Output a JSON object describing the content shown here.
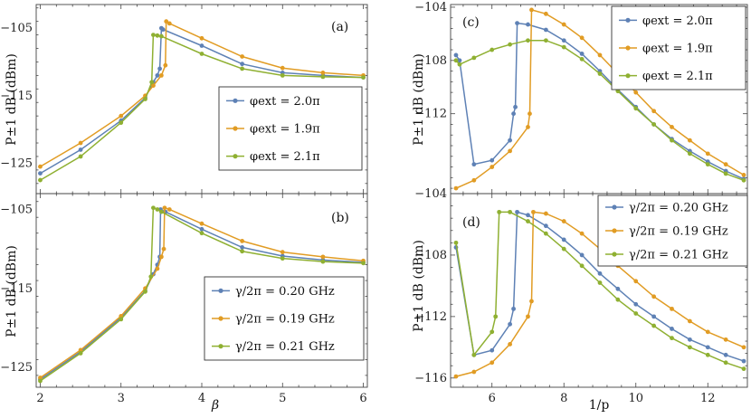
{
  "colors": {
    "blue": "#5E81B5",
    "orange": "#E19C24",
    "green": "#8FB032"
  },
  "chart_data": [
    {
      "id": "a",
      "type": "line",
      "panel_label": "(a)",
      "ylabel": "P±1 dB (dBm)",
      "xlabel": "",
      "xlim": [
        1.95,
        6.05
      ],
      "ylim": [
        -129.5,
        -101.5
      ],
      "xticks": [
        2,
        3,
        4,
        5,
        6
      ],
      "yticks": [
        -105,
        -115,
        -125
      ],
      "show_xtick_labels": false,
      "legend_position": "middle-right",
      "series": [
        {
          "name": "φext = 2.0π",
          "color": "#5E81B5",
          "points": [
            [
              2.0,
              -126.5
            ],
            [
              2.5,
              -123.0
            ],
            [
              3.0,
              -118.7
            ],
            [
              3.3,
              -115.3
            ],
            [
              3.4,
              -113.0
            ],
            [
              3.45,
              -112.0
            ],
            [
              3.48,
              -111.0
            ],
            [
              3.5,
              -105.0
            ],
            [
              3.52,
              -105.2
            ],
            [
              4.0,
              -107.6
            ],
            [
              4.5,
              -110.3
            ],
            [
              5.0,
              -111.6
            ],
            [
              5.5,
              -112.0
            ],
            [
              6.0,
              -112.3
            ]
          ]
        },
        {
          "name": "φext = 1.9π",
          "color": "#E19C24",
          "points": [
            [
              2.0,
              -125.5
            ],
            [
              2.5,
              -122.0
            ],
            [
              3.0,
              -118.0
            ],
            [
              3.3,
              -115.0
            ],
            [
              3.4,
              -113.5
            ],
            [
              3.5,
              -112.0
            ],
            [
              3.55,
              -110.5
            ],
            [
              3.56,
              -104.0
            ],
            [
              3.6,
              -104.3
            ],
            [
              4.0,
              -106.5
            ],
            [
              4.5,
              -109.2
            ],
            [
              5.0,
              -110.9
            ],
            [
              5.5,
              -111.6
            ],
            [
              6.0,
              -112.0
            ]
          ]
        },
        {
          "name": "φext = 2.1π",
          "color": "#8FB032",
          "points": [
            [
              2.0,
              -127.5
            ],
            [
              2.5,
              -124.0
            ],
            [
              3.0,
              -119.0
            ],
            [
              3.3,
              -115.5
            ],
            [
              3.38,
              -113.0
            ],
            [
              3.4,
              -106.0
            ],
            [
              3.45,
              -106.1
            ],
            [
              3.5,
              -106.2
            ],
            [
              4.0,
              -108.8
            ],
            [
              4.5,
              -111.0
            ],
            [
              5.0,
              -112.0
            ],
            [
              5.5,
              -112.2
            ],
            [
              6.0,
              -112.3
            ]
          ]
        }
      ]
    },
    {
      "id": "b",
      "type": "line",
      "panel_label": "(b)",
      "ylabel": "P±1 dB (dBm)",
      "xlabel": "β",
      "xlim": [
        1.95,
        6.05
      ],
      "ylim": [
        -127.5,
        -103.0
      ],
      "xticks": [
        2,
        3,
        4,
        5,
        6
      ],
      "yticks": [
        -105,
        -115,
        -125
      ],
      "show_xtick_labels": true,
      "legend_position": "bottom-right",
      "series": [
        {
          "name": "γ/2π = 0.20 GHz",
          "color": "#5E81B5",
          "points": [
            [
              2.0,
              -126.5
            ],
            [
              2.5,
              -123.0
            ],
            [
              3.0,
              -118.7
            ],
            [
              3.3,
              -115.3
            ],
            [
              3.4,
              -113.2
            ],
            [
              3.45,
              -112.0
            ],
            [
              3.48,
              -111.0
            ],
            [
              3.49,
              -105.0
            ],
            [
              3.55,
              -105.3
            ],
            [
              4.0,
              -107.5
            ],
            [
              4.5,
              -109.8
            ],
            [
              5.0,
              -110.9
            ],
            [
              5.5,
              -111.4
            ],
            [
              6.0,
              -111.7
            ]
          ]
        },
        {
          "name": "γ/2π = 0.19 GHz",
          "color": "#E19C24",
          "points": [
            [
              2.0,
              -126.3
            ],
            [
              2.5,
              -122.8
            ],
            [
              3.0,
              -118.5
            ],
            [
              3.3,
              -115.0
            ],
            [
              3.45,
              -112.5
            ],
            [
              3.5,
              -111.0
            ],
            [
              3.53,
              -110.0
            ],
            [
              3.54,
              -104.8
            ],
            [
              3.6,
              -105.0
            ],
            [
              4.0,
              -106.8
            ],
            [
              4.5,
              -109.0
            ],
            [
              5.0,
              -110.4
            ],
            [
              5.5,
              -111.0
            ],
            [
              6.0,
              -111.5
            ]
          ]
        },
        {
          "name": "γ/2π = 0.21 GHz",
          "color": "#8FB032",
          "points": [
            [
              2.0,
              -126.7
            ],
            [
              2.5,
              -123.2
            ],
            [
              3.0,
              -118.9
            ],
            [
              3.3,
              -115.4
            ],
            [
              3.37,
              -113.5
            ],
            [
              3.4,
              -104.8
            ],
            [
              3.45,
              -105.0
            ],
            [
              3.5,
              -105.3
            ],
            [
              4.0,
              -108.0
            ],
            [
              4.5,
              -110.3
            ],
            [
              5.0,
              -111.2
            ],
            [
              5.5,
              -111.6
            ],
            [
              6.0,
              -111.8
            ]
          ]
        }
      ]
    },
    {
      "id": "c",
      "type": "line",
      "panel_label": "(c)",
      "ylabel": "P±1 dB (dBm)",
      "xlabel": "",
      "xlim": [
        4.85,
        13.1
      ],
      "ylim": [
        -118.0,
        -103.8
      ],
      "xticks": [
        6,
        8,
        10,
        12
      ],
      "yticks": [
        -104,
        -108,
        -112
      ],
      "show_xtick_labels": false,
      "legend_position": "top-right",
      "series": [
        {
          "name": "φext = 2.0π",
          "color": "#5E81B5",
          "points": [
            [
              5.0,
              -107.6
            ],
            [
              5.1,
              -108.0
            ],
            [
              5.5,
              -115.8
            ],
            [
              6.0,
              -115.5
            ],
            [
              6.5,
              -114.0
            ],
            [
              6.6,
              -112.0
            ],
            [
              6.65,
              -111.5
            ],
            [
              6.7,
              -105.2
            ],
            [
              7.0,
              -105.3
            ],
            [
              7.5,
              -105.7
            ],
            [
              8.0,
              -106.5
            ],
            [
              8.5,
              -107.5
            ],
            [
              9.0,
              -108.8
            ],
            [
              9.5,
              -110.2
            ],
            [
              10.0,
              -111.5
            ],
            [
              10.5,
              -112.8
            ],
            [
              11.0,
              -113.9
            ],
            [
              11.5,
              -114.8
            ],
            [
              12.0,
              -115.6
            ],
            [
              12.5,
              -116.3
            ],
            [
              13.0,
              -116.9
            ]
          ]
        },
        {
          "name": "φext = 1.9π",
          "color": "#E19C24",
          "points": [
            [
              5.0,
              -117.6
            ],
            [
              5.5,
              -117.0
            ],
            [
              6.0,
              -116.0
            ],
            [
              6.5,
              -114.8
            ],
            [
              7.0,
              -113.0
            ],
            [
              7.05,
              -112.0
            ],
            [
              7.1,
              -104.2
            ],
            [
              7.5,
              -104.5
            ],
            [
              8.0,
              -105.3
            ],
            [
              8.5,
              -106.3
            ],
            [
              9.0,
              -107.6
            ],
            [
              9.5,
              -109.0
            ],
            [
              10.0,
              -110.4
            ],
            [
              10.5,
              -111.8
            ],
            [
              11.0,
              -113.0
            ],
            [
              11.5,
              -114.0
            ],
            [
              12.0,
              -115.0
            ],
            [
              12.5,
              -115.8
            ],
            [
              13.0,
              -116.6
            ]
          ]
        },
        {
          "name": "φext = 2.1π",
          "color": "#8FB032",
          "points": [
            [
              5.0,
              -108.0
            ],
            [
              5.1,
              -108.3
            ],
            [
              5.5,
              -107.8
            ],
            [
              6.0,
              -107.2
            ],
            [
              6.5,
              -106.8
            ],
            [
              7.0,
              -106.5
            ],
            [
              7.5,
              -106.5
            ],
            [
              8.0,
              -107.0
            ],
            [
              8.5,
              -107.9
            ],
            [
              9.0,
              -109.0
            ],
            [
              9.5,
              -110.3
            ],
            [
              10.0,
              -111.6
            ],
            [
              10.5,
              -112.8
            ],
            [
              11.0,
              -114.0
            ],
            [
              11.5,
              -115.0
            ],
            [
              12.0,
              -115.8
            ],
            [
              12.5,
              -116.5
            ],
            [
              13.0,
              -117.0
            ]
          ]
        }
      ]
    },
    {
      "id": "d",
      "type": "line",
      "panel_label": "(d)",
      "ylabel": "P±1 dB (dBm)",
      "xlabel": "1/p",
      "xlim": [
        4.85,
        13.1
      ],
      "ylim": [
        -116.6,
        -104.0
      ],
      "xticks": [
        6,
        8,
        10,
        12
      ],
      "yticks": [
        -104,
        -108,
        -112,
        -116
      ],
      "show_xtick_labels": true,
      "legend_position": "top-right",
      "series": [
        {
          "name": "γ/2π = 0.20 GHz",
          "color": "#5E81B5",
          "points": [
            [
              5.0,
              -107.5
            ],
            [
              5.5,
              -114.5
            ],
            [
              6.0,
              -114.2
            ],
            [
              6.5,
              -112.5
            ],
            [
              6.6,
              -111.5
            ],
            [
              6.7,
              -105.2
            ],
            [
              7.0,
              -105.4
            ],
            [
              7.5,
              -106.1
            ],
            [
              8.0,
              -107.0
            ],
            [
              8.5,
              -108.0
            ],
            [
              9.0,
              -109.2
            ],
            [
              9.5,
              -110.2
            ],
            [
              10.0,
              -111.2
            ],
            [
              10.5,
              -112.0
            ],
            [
              11.0,
              -112.8
            ],
            [
              11.5,
              -113.5
            ],
            [
              12.0,
              -114.0
            ],
            [
              12.5,
              -114.5
            ],
            [
              13.0,
              -114.9
            ]
          ]
        },
        {
          "name": "γ/2π = 0.19 GHz",
          "color": "#E19C24",
          "points": [
            [
              5.0,
              -115.9
            ],
            [
              5.5,
              -115.6
            ],
            [
              6.0,
              -115.0
            ],
            [
              6.5,
              -113.8
            ],
            [
              7.0,
              -112.0
            ],
            [
              7.1,
              -111.0
            ],
            [
              7.15,
              -105.2
            ],
            [
              7.5,
              -105.3
            ],
            [
              8.0,
              -105.8
            ],
            [
              8.5,
              -106.6
            ],
            [
              9.0,
              -107.6
            ],
            [
              9.5,
              -108.7
            ],
            [
              10.0,
              -109.7
            ],
            [
              10.5,
              -110.7
            ],
            [
              11.0,
              -111.5
            ],
            [
              11.5,
              -112.3
            ],
            [
              12.0,
              -113.0
            ],
            [
              12.5,
              -113.5
            ],
            [
              13.0,
              -114.0
            ]
          ]
        },
        {
          "name": "γ/2π = 0.21 GHz",
          "color": "#8FB032",
          "points": [
            [
              5.0,
              -107.2
            ],
            [
              5.5,
              -114.5
            ],
            [
              6.0,
              -113.0
            ],
            [
              6.1,
              -112.0
            ],
            [
              6.2,
              -105.2
            ],
            [
              6.5,
              -105.2
            ],
            [
              7.0,
              -105.8
            ],
            [
              7.5,
              -106.6
            ],
            [
              8.0,
              -107.6
            ],
            [
              8.5,
              -108.7
            ],
            [
              9.0,
              -109.8
            ],
            [
              9.5,
              -110.9
            ],
            [
              10.0,
              -111.8
            ],
            [
              10.5,
              -112.6
            ],
            [
              11.0,
              -113.4
            ],
            [
              11.5,
              -114.0
            ],
            [
              12.0,
              -114.5
            ],
            [
              12.5,
              -115.0
            ],
            [
              13.0,
              -115.4
            ]
          ]
        }
      ]
    }
  ]
}
